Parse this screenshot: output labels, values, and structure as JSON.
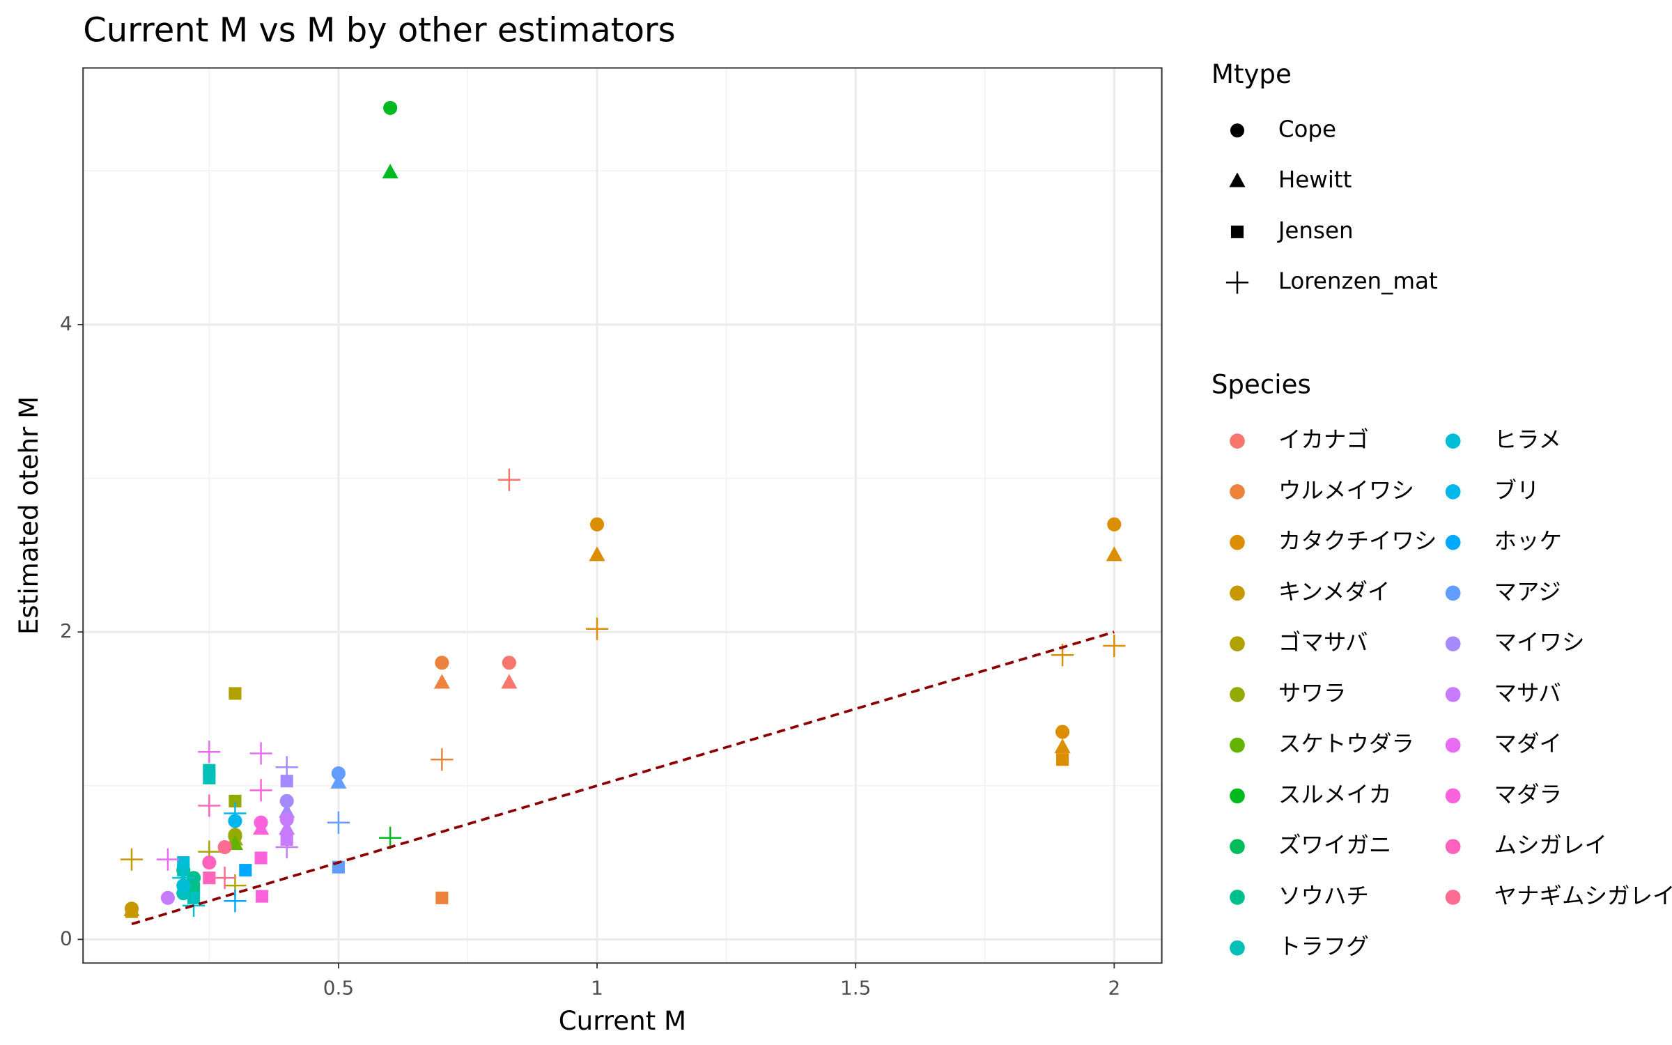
{
  "chart_data": {
    "type": "scatter",
    "title": "Current M vs M by other estimators",
    "x_label": "Current M",
    "y_label": "Estimated otehr M",
    "xlim": [
      0.006,
      2.092
    ],
    "ylim": [
      -0.154,
      5.67
    ],
    "xticks": [
      0.5,
      1.0,
      1.5,
      2.0
    ],
    "yticks": [
      0,
      2,
      4
    ],
    "x_minor_grid": [
      0.25,
      0.75,
      1.25,
      1.75
    ],
    "y_minor_grid": [
      1,
      3,
      5
    ],
    "grid": true,
    "reference_line": {
      "x": [
        0.1,
        2.0
      ],
      "y": [
        0.1,
        2.0
      ],
      "color": "#8b0000",
      "dashed": true
    },
    "shape_legend": {
      "title": "Mtype",
      "entries": [
        {
          "name": "Cope",
          "shape": "circle"
        },
        {
          "name": "Hewitt",
          "shape": "triangle"
        },
        {
          "name": "Jensen",
          "shape": "square"
        },
        {
          "name": "Lorenzen_mat",
          "shape": "plus"
        }
      ]
    },
    "color_legend_title": "Species",
    "series": [
      {
        "name": "イカナゴ",
        "color": "#F8766D",
        "x": [
          0.83,
          0.83,
          0.83
        ],
        "y": [
          1.8,
          1.67,
          2.99
        ],
        "mtype": [
          "Cope",
          "Hewitt",
          "Lorenzen_mat"
        ]
      },
      {
        "name": "ウルメイワシ",
        "color": "#EC823C",
        "x": [
          0.7,
          0.7,
          0.7,
          0.7
        ],
        "y": [
          1.8,
          1.67,
          0.27,
          1.17
        ],
        "mtype": [
          "Cope",
          "Hewitt",
          "Jensen",
          "Lorenzen_mat"
        ]
      },
      {
        "name": "カタクチイワシ",
        "color": "#DB8E00",
        "x": [
          1.0,
          1.0,
          1.0,
          2.0,
          2.0,
          2.0,
          1.9,
          1.9,
          1.9,
          1.9
        ],
        "y": [
          2.7,
          2.5,
          2.02,
          2.7,
          2.5,
          1.91,
          1.35,
          1.25,
          1.17,
          1.85
        ],
        "mtype": [
          "Cope",
          "Hewitt",
          "Lorenzen_mat",
          "Cope",
          "Hewitt",
          "Lorenzen_mat",
          "Cope",
          "Hewitt",
          "Jensen",
          "Lorenzen_mat"
        ]
      },
      {
        "name": "キンメダイ",
        "color": "#C79800",
        "x": [
          0.1,
          0.1,
          0.1,
          0.1
        ],
        "y": [
          0.2,
          0.19,
          0.18,
          0.52
        ],
        "mtype": [
          "Cope",
          "Hewitt",
          "Jensen",
          "Lorenzen_mat"
        ]
      },
      {
        "name": "ゴマサバ",
        "color": "#AFA100",
        "x": [
          0.3,
          0.3,
          0.3,
          0.3,
          0.25
        ],
        "y": [
          1.6,
          0.68,
          0.65,
          0.35,
          0.57
        ],
        "mtype": [
          "Jensen",
          "Cope",
          "Hewitt",
          "Lorenzen_mat",
          "Lorenzen_mat"
        ]
      },
      {
        "name": "サワラ",
        "color": "#93AA00",
        "x": [
          0.3,
          0.3
        ],
        "y": [
          0.9,
          0.67
        ],
        "mtype": [
          "Jensen",
          "Cope"
        ]
      },
      {
        "name": "スケトウダラ",
        "color": "#64B200",
        "x": [
          0.3
        ],
        "y": [
          0.62
        ],
        "mtype": [
          "Hewitt"
        ]
      },
      {
        "name": "スルメイカ",
        "color": "#00B81F",
        "x": [
          0.6,
          0.6,
          0.6
        ],
        "y": [
          5.41,
          4.99,
          0.66
        ],
        "mtype": [
          "Cope",
          "Hewitt",
          "Lorenzen_mat"
        ]
      },
      {
        "name": "ズワイガニ",
        "color": "#00BC59",
        "x": [
          0.2
        ],
        "y": [
          0.45
        ],
        "mtype": [
          "Cope"
        ]
      },
      {
        "name": "ソウハチ",
        "color": "#00BF8C",
        "x": [
          0.22,
          0.22
        ],
        "y": [
          0.4,
          0.33
        ],
        "mtype": [
          "Cope",
          "Jensen"
        ]
      },
      {
        "name": "トラフグ",
        "color": "#00C0B8",
        "x": [
          0.25,
          0.25,
          0.2,
          0.2,
          0.22
        ],
        "y": [
          1.1,
          1.05,
          0.45,
          0.3,
          0.27
        ],
        "mtype": [
          "Jensen",
          "Jensen",
          "Jensen",
          "Cope",
          "Jensen"
        ]
      },
      {
        "name": "ヒラメ",
        "color": "#00BDD8",
        "x": [
          0.2,
          0.2,
          0.2,
          0.22
        ],
        "y": [
          0.5,
          0.35,
          0.4,
          0.22
        ],
        "mtype": [
          "Jensen",
          "Cope",
          "Lorenzen_mat",
          "Lorenzen_mat"
        ]
      },
      {
        "name": "ブリ",
        "color": "#00B6EB",
        "x": [
          0.3,
          0.3
        ],
        "y": [
          0.77,
          0.82
        ],
        "mtype": [
          "Cope",
          "Lorenzen_mat"
        ]
      },
      {
        "name": "ホッケ",
        "color": "#00A9FF",
        "x": [
          0.3,
          0.32
        ],
        "y": [
          0.25,
          0.45
        ],
        "mtype": [
          "Lorenzen_mat",
          "Jensen"
        ]
      },
      {
        "name": "マアジ",
        "color": "#619CFF",
        "x": [
          0.5,
          0.5,
          0.5,
          0.5
        ],
        "y": [
          1.08,
          1.02,
          0.47,
          0.76
        ],
        "mtype": [
          "Cope",
          "Hewitt",
          "Jensen",
          "Lorenzen_mat"
        ]
      },
      {
        "name": "マイワシ",
        "color": "#A58AFF",
        "x": [
          0.4,
          0.4,
          0.4,
          0.4
        ],
        "y": [
          1.03,
          1.12,
          0.9,
          0.83
        ],
        "mtype": [
          "Jensen",
          "Lorenzen_mat",
          "Cope",
          "Hewitt"
        ]
      },
      {
        "name": "マサバ",
        "color": "#C77CFF",
        "x": [
          0.4,
          0.4,
          0.4,
          0.4,
          0.17
        ],
        "y": [
          0.78,
          0.72,
          0.65,
          0.6,
          0.27
        ],
        "mtype": [
          "Cope",
          "Hewitt",
          "Jensen",
          "Lorenzen_mat",
          "Cope"
        ]
      },
      {
        "name": "マダイ",
        "color": "#E76BF3",
        "x": [
          0.25,
          0.17,
          0.35
        ],
        "y": [
          1.22,
          0.52,
          1.21
        ],
        "mtype": [
          "Lorenzen_mat",
          "Lorenzen_mat",
          "Lorenzen_mat"
        ]
      },
      {
        "name": "マダラ",
        "color": "#FA62DB",
        "x": [
          0.35,
          0.35,
          0.35,
          0.35,
          0.352
        ],
        "y": [
          0.76,
          0.72,
          0.53,
          0.97,
          0.28
        ],
        "mtype": [
          "Cope",
          "Hewitt",
          "Jensen",
          "Lorenzen_mat",
          "Jensen"
        ]
      },
      {
        "name": "ムシガレイ",
        "color": "#FF62BC",
        "x": [
          0.25,
          0.25,
          0.25
        ],
        "y": [
          0.87,
          0.4,
          0.5
        ],
        "mtype": [
          "Lorenzen_mat",
          "Jensen",
          "Cope"
        ]
      },
      {
        "name": "ヤナギムシガレイ",
        "color": "#FF6C91",
        "x": [
          0.28,
          0.28
        ],
        "y": [
          0.6,
          0.4
        ],
        "mtype": [
          "Cope",
          "Lorenzen_mat"
        ]
      }
    ]
  }
}
